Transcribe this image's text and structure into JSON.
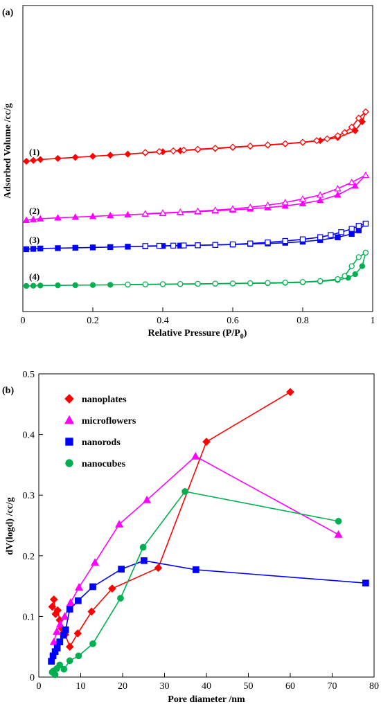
{
  "chart_data": [
    {
      "panel": "(a)",
      "type": "line",
      "xlabel": "Relative Pressure (P/P₀)",
      "ylabel": "Adsorbed Volume /cc/g",
      "xlim": [
        0,
        1
      ],
      "xticks": [
        "0",
        "0.2",
        "0.4",
        "0.6",
        "0.8",
        "1"
      ],
      "y_tick_labels": "none",
      "series": [
        {
          "name": "(1)",
          "color": "#ff0000",
          "marker": "diamond",
          "adsorption_x": [
            0.01,
            0.03,
            0.05,
            0.1,
            0.15,
            0.2,
            0.25,
            0.3,
            0.35,
            0.4,
            0.45,
            0.5,
            0.55,
            0.6,
            0.65,
            0.7,
            0.75,
            0.8,
            0.85,
            0.9,
            0.95,
            0.97,
            0.98
          ],
          "adsorption_y": [
            3.0,
            3.05,
            3.1,
            3.16,
            3.22,
            3.28,
            3.34,
            3.4,
            3.47,
            3.53,
            3.59,
            3.65,
            3.71,
            3.77,
            3.84,
            3.9,
            3.97,
            4.05,
            4.15,
            4.32,
            4.7,
            5.2,
            5.75
          ],
          "desorption_x": [
            0.98,
            0.96,
            0.94,
            0.92,
            0.9,
            0.87,
            0.84,
            0.8,
            0.75,
            0.7,
            0.65,
            0.6,
            0.55,
            0.5,
            0.46,
            0.43,
            0.39,
            0.35
          ],
          "desorption_y": [
            5.75,
            5.4,
            4.9,
            4.6,
            4.42,
            4.25,
            4.15,
            4.06,
            3.98,
            3.91,
            3.85,
            3.79,
            3.73,
            3.67,
            3.62,
            3.58,
            3.54,
            3.49
          ]
        },
        {
          "name": "(2)",
          "color": "#ff00ff",
          "marker": "triangle",
          "adsorption_x": [
            0.01,
            0.03,
            0.05,
            0.1,
            0.15,
            0.2,
            0.25,
            0.3,
            0.35,
            0.4,
            0.45,
            0.5,
            0.55,
            0.6,
            0.65,
            0.7,
            0.75,
            0.8,
            0.85,
            0.9,
            0.95,
            0.98
          ],
          "adsorption_y": [
            1.5,
            1.54,
            1.58,
            1.63,
            1.67,
            1.71,
            1.76,
            1.8,
            1.84,
            1.88,
            1.93,
            1.97,
            2.02,
            2.07,
            2.13,
            2.2,
            2.29,
            2.42,
            2.6,
            2.9,
            3.4,
            4.0
          ],
          "desorption_x": [
            0.98,
            0.94,
            0.9,
            0.85,
            0.8,
            0.75,
            0.7,
            0.65,
            0.6,
            0.55,
            0.5,
            0.45,
            0.4,
            0.35
          ],
          "desorption_y": [
            4.0,
            3.6,
            3.25,
            2.9,
            2.68,
            2.48,
            2.33,
            2.22,
            2.13,
            2.06,
            2.0,
            1.95,
            1.9,
            1.86
          ]
        },
        {
          "name": "(3)",
          "color": "#0000ff",
          "marker": "square",
          "adsorption_x": [
            0.01,
            0.03,
            0.05,
            0.1,
            0.15,
            0.2,
            0.25,
            0.3,
            0.35,
            0.4,
            0.45,
            0.5,
            0.55,
            0.6,
            0.65,
            0.7,
            0.75,
            0.8,
            0.85,
            0.9,
            0.94,
            0.96,
            0.98
          ],
          "adsorption_y": [
            0.85,
            0.87,
            0.89,
            0.91,
            0.93,
            0.95,
            0.97,
            0.99,
            1.01,
            1.03,
            1.05,
            1.07,
            1.09,
            1.11,
            1.14,
            1.17,
            1.21,
            1.27,
            1.36,
            1.51,
            1.7,
            1.9,
            2.27
          ],
          "desorption_x": [
            0.98,
            0.96,
            0.94,
            0.91,
            0.88,
            0.85,
            0.8,
            0.75,
            0.7,
            0.65,
            0.6,
            0.55,
            0.5,
            0.46,
            0.43,
            0.39,
            0.35
          ],
          "desorption_y": [
            2.27,
            2.15,
            1.98,
            1.8,
            1.64,
            1.52,
            1.4,
            1.31,
            1.23,
            1.17,
            1.12,
            1.09,
            1.07,
            1.06,
            1.05,
            1.04,
            1.03
          ]
        },
        {
          "name": "(4)",
          "color": "#00b050",
          "marker": "circle",
          "adsorption_x": [
            0.01,
            0.03,
            0.05,
            0.1,
            0.15,
            0.2,
            0.25,
            0.3,
            0.35,
            0.4,
            0.45,
            0.5,
            0.55,
            0.6,
            0.65,
            0.7,
            0.75,
            0.8,
            0.85,
            0.9,
            0.93,
            0.95,
            0.97,
            0.98
          ],
          "adsorption_y": [
            0.0,
            0.01,
            0.02,
            0.03,
            0.04,
            0.05,
            0.06,
            0.07,
            0.08,
            0.09,
            0.1,
            0.11,
            0.12,
            0.13,
            0.14,
            0.15,
            0.17,
            0.2,
            0.25,
            0.33,
            0.45,
            0.65,
            1.1,
            1.85
          ],
          "desorption_x": [
            0.98,
            0.96,
            0.94,
            0.92,
            0.9,
            0.85,
            0.8,
            0.75,
            0.7,
            0.65,
            0.6,
            0.55,
            0.5,
            0.45,
            0.4,
            0.35,
            0.3
          ],
          "desorption_y": [
            1.85,
            1.6,
            1.1,
            0.55,
            0.38,
            0.27,
            0.22,
            0.19,
            0.17,
            0.15,
            0.14,
            0.13,
            0.12,
            0.11,
            0.1,
            0.09,
            0.08
          ]
        }
      ]
    },
    {
      "panel": "(b)",
      "type": "line",
      "xlabel": "Pore diameter /nm",
      "ylabel": "dV(logd) /cc/g",
      "xlim": [
        0,
        80
      ],
      "ylim": [
        0,
        0.5
      ],
      "xticks": [
        "0",
        "10",
        "20",
        "30",
        "40",
        "50",
        "60",
        "70",
        "80"
      ],
      "yticks": [
        "0",
        "0.1",
        "0.2",
        "0.3",
        "0.4",
        "0.5"
      ],
      "legend_position": "top-left",
      "series": [
        {
          "name": "nanoplates",
          "color": "#ff0000",
          "marker": "diamond",
          "x": [
            3.2,
            3.6,
            4.0,
            4.5,
            5.0,
            5.5,
            6.3,
            7.4,
            9.3,
            12.6,
            17.5,
            28.5,
            40,
            60
          ],
          "y": [
            0.116,
            0.128,
            0.104,
            0.11,
            0.094,
            0.08,
            0.07,
            0.05,
            0.072,
            0.108,
            0.146,
            0.18,
            0.388,
            0.47
          ]
        },
        {
          "name": "microflowers",
          "color": "#ff00ff",
          "marker": "triangle",
          "x": [
            3.6,
            4.3,
            5.1,
            6.2,
            7.6,
            9.6,
            13.4,
            19.2,
            25.8,
            37.4,
            71.5
          ],
          "y": [
            0.058,
            0.075,
            0.087,
            0.1,
            0.123,
            0.148,
            0.189,
            0.252,
            0.292,
            0.364,
            0.235
          ]
        },
        {
          "name": "nanorods",
          "color": "#0000ff",
          "marker": "square",
          "x": [
            3.0,
            3.4,
            3.9,
            4.4,
            5.0,
            5.9,
            6.4,
            7.4,
            9.4,
            12.9,
            19.7,
            25.1,
            37.5,
            78
          ],
          "y": [
            0.026,
            0.035,
            0.042,
            0.048,
            0.058,
            0.069,
            0.078,
            0.112,
            0.126,
            0.149,
            0.178,
            0.192,
            0.177,
            0.155
          ]
        },
        {
          "name": "nanocubes",
          "color": "#00b050",
          "marker": "circle",
          "x": [
            3.2,
            3.5,
            3.9,
            4.3,
            5.0,
            6.0,
            7.4,
            9.5,
            12.9,
            19.5,
            24.9,
            34.9,
            71.5
          ],
          "y": [
            0.008,
            0.01,
            0.004,
            0.014,
            0.02,
            0.013,
            0.027,
            0.035,
            0.055,
            0.13,
            0.214,
            0.306,
            0.257
          ]
        }
      ]
    }
  ]
}
